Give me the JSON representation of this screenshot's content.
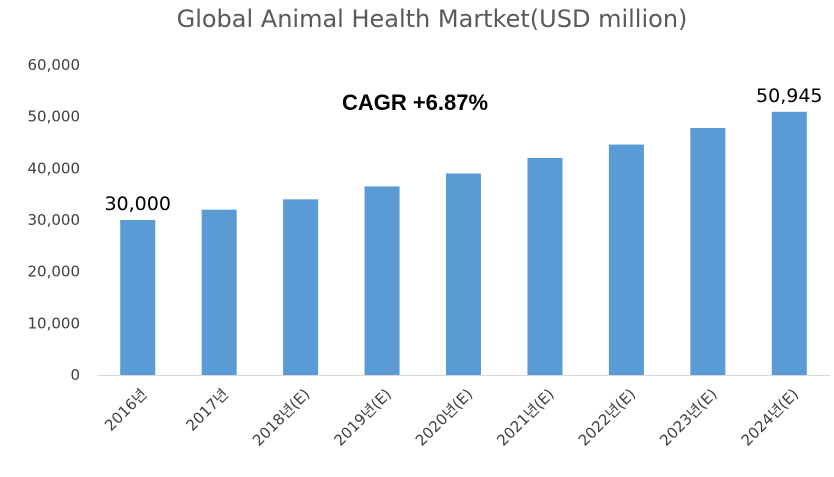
{
  "chart_data": {
    "type": "bar",
    "title": "Global Animal Health Martket(USD million)",
    "categories": [
      "2016년",
      "2017년",
      "2018년(E)",
      "2019년(E)",
      "2020년(E)",
      "2021년(E)",
      "2022년(E)",
      "2023년(E)",
      "2024년(E)"
    ],
    "values": [
      30000,
      32000,
      34000,
      36500,
      39000,
      42000,
      44600,
      47800,
      50945
    ],
    "ylim": [
      0,
      60000
    ],
    "yticks": [
      "0",
      "10,000",
      "20,000",
      "30,000",
      "40,000",
      "50,000",
      "60,000"
    ],
    "ytick_values": [
      0,
      10000,
      20000,
      30000,
      40000,
      50000,
      60000
    ],
    "data_labels": [
      {
        "index": 0,
        "text": "30,000"
      },
      {
        "index": 8,
        "text": "50,945"
      }
    ],
    "annotation": "CAGR +6.87%",
    "bar_color": "#5b9bd5",
    "grid": false,
    "legend": "none"
  }
}
